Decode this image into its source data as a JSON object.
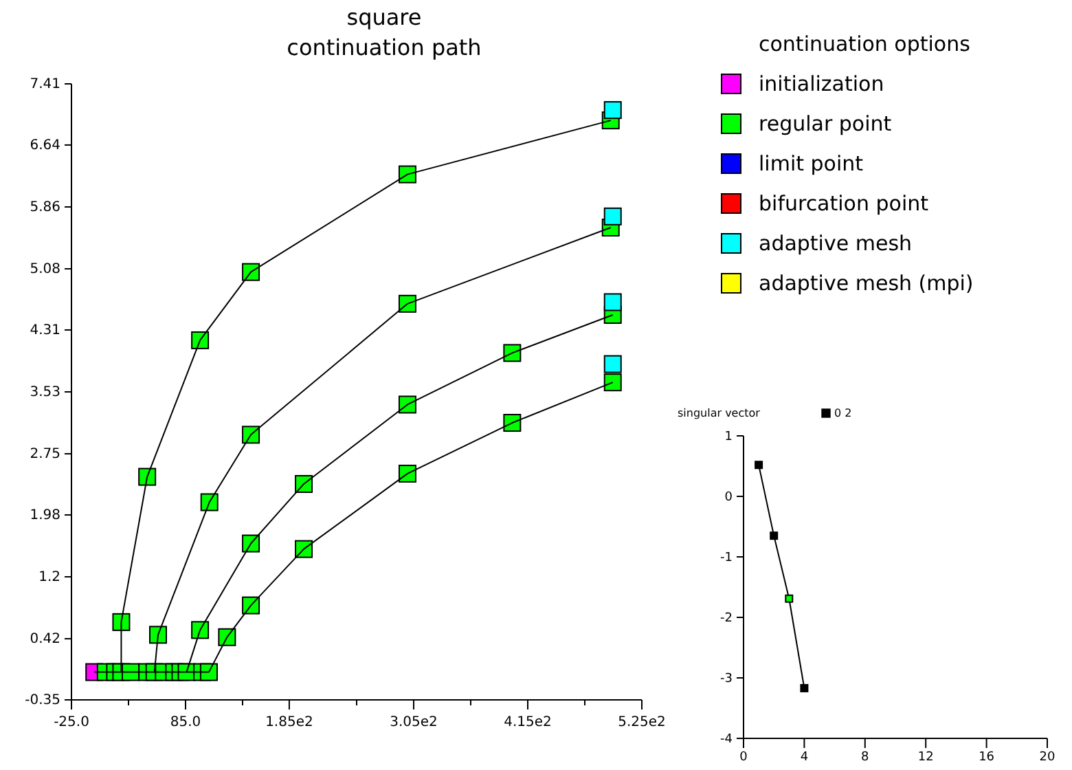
{
  "chart_data": [
    {
      "type": "line",
      "title": "square",
      "subtitle": "continuation path",
      "legend_title": "continuation options",
      "legend": "right",
      "marker": "square",
      "grid": false,
      "xlim": [
        -25,
        525
      ],
      "xticks": [
        {
          "value": -25,
          "label": "-25.0"
        },
        {
          "value": 30,
          "label": null
        },
        {
          "value": 85,
          "label": "85.0"
        },
        {
          "value": 140,
          "label": null
        },
        {
          "value": 185,
          "label": "1.85e2"
        },
        {
          "value": 250,
          "label": null
        },
        {
          "value": 305,
          "label": "3.05e2"
        },
        {
          "value": 360,
          "label": null
        },
        {
          "value": 415,
          "label": "4.15e2"
        },
        {
          "value": 470,
          "label": null
        },
        {
          "value": 525,
          "label": "5.25e2"
        }
      ],
      "ylim": [
        -0.35,
        7.41
      ],
      "yticks": [
        -0.35,
        0.42,
        1.2,
        1.98,
        2.75,
        3.53,
        4.31,
        5.08,
        5.86,
        6.64,
        7.41
      ],
      "series": [
        {
          "marker": "none",
          "color": "#000000",
          "x": [
            -3,
            107.5
          ],
          "values": [
            0,
            0
          ]
        },
        {
          "marker": "none",
          "color": "#000000",
          "x": [
            23,
            23,
            48,
            99,
            148,
            299,
            495
          ],
          "values": [
            0,
            0.63,
            2.46,
            4.18,
            5.04,
            6.27,
            6.95
          ]
        },
        {
          "marker": "none",
          "color": "#000000",
          "x": [
            55,
            58.5,
            108,
            148,
            299,
            495
          ],
          "values": [
            0,
            0.47,
            2.14,
            2.99,
            4.64,
            5.6
          ]
        },
        {
          "marker": "none",
          "color": "#000000",
          "x": [
            86,
            99,
            148,
            199,
            299,
            400,
            497
          ],
          "values": [
            0,
            0.53,
            1.62,
            2.37,
            3.37,
            4.02,
            4.5
          ]
        },
        {
          "marker": "none",
          "color": "#000000",
          "x": [
            107.5,
            125,
            148,
            199,
            299,
            400,
            497
          ],
          "values": [
            0,
            0.44,
            0.84,
            1.55,
            2.5,
            3.14,
            3.65
          ]
        },
        {
          "type": "scatter",
          "name": "initialization",
          "color": "#ff00ff",
          "x": [
            -3
          ],
          "values": [
            0
          ]
        },
        {
          "type": "scatter",
          "name": "regular point",
          "color": "#00ff00",
          "x": [
            8,
            17,
            23,
            32,
            48,
            55,
            64,
            74,
            80,
            86,
            101,
            107.5,
            23,
            48,
            99,
            148,
            299,
            495,
            58.5,
            108,
            148,
            299,
            495,
            99,
            148,
            199,
            299,
            400,
            497,
            125,
            148,
            199,
            299,
            400,
            497
          ],
          "values": [
            0,
            0,
            0,
            0,
            0,
            0,
            0,
            0,
            0,
            0,
            0,
            0,
            0.63,
            2.46,
            4.18,
            5.04,
            6.27,
            6.95,
            0.47,
            2.14,
            2.99,
            4.64,
            5.6,
            0.53,
            1.62,
            2.37,
            3.37,
            4.02,
            4.5,
            0.44,
            0.84,
            1.55,
            2.5,
            3.14,
            3.65
          ]
        },
        {
          "type": "scatter",
          "name": "limit point",
          "color": "#0000ff"
        },
        {
          "type": "scatter",
          "name": "bifurcation point",
          "color": "#ff0000"
        },
        {
          "type": "scatter",
          "name": "adaptive mesh",
          "color": "#00ffff",
          "x": [
            497,
            497,
            497,
            497
          ],
          "values": [
            7.08,
            5.74,
            4.66,
            3.88
          ]
        },
        {
          "type": "scatter",
          "name": "adaptive mesh (mpi)",
          "color": "#ffff00"
        }
      ]
    },
    {
      "type": "line",
      "title": "singular vector",
      "legend": "top",
      "marker": "square",
      "grid": false,
      "xlim": [
        0,
        20
      ],
      "xticks": [
        0,
        4,
        8,
        12,
        16,
        20
      ],
      "ylim": [
        -4,
        1
      ],
      "yticks": [
        -4,
        -3,
        -2,
        -1,
        0,
        1
      ],
      "series": [
        {
          "name": "0 2",
          "color": "#000000",
          "colors": [
            "#000000",
            "#000000",
            "#00ff00",
            "#000000"
          ],
          "x": [
            1,
            2,
            3,
            4
          ],
          "values": [
            0.52,
            -0.65,
            -1.69,
            -3.17
          ]
        }
      ]
    }
  ]
}
